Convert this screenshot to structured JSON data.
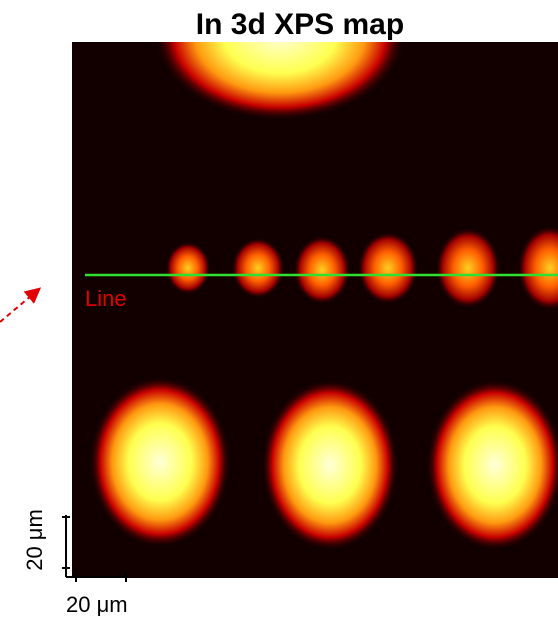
{
  "title": "In 3d XPS map",
  "annotation": "Line",
  "scale_x_label": "20 μm",
  "scale_y_label": "20 μm"
}
